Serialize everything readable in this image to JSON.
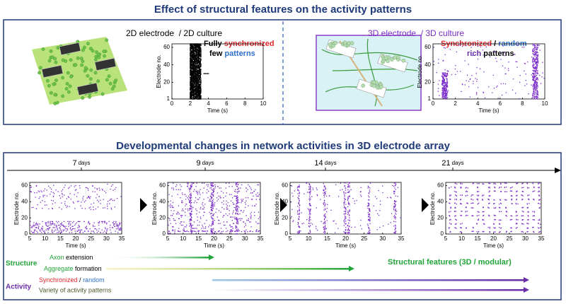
{
  "top": {
    "title": "Effect of structural features on the activity patterns",
    "panels": [
      {
        "heading": "2D electrode  / 2D culture",
        "caption": [
          [
            "Fully ",
            "synchronized"
          ],
          [
            "few ",
            "patterns"
          ]
        ],
        "plot": {
          "xlabel": "Time (s)",
          "ylabel": "Electrode no.",
          "xlim": [
            0,
            10
          ],
          "ylim": [
            1,
            64
          ],
          "xticks": [
            0,
            2,
            4,
            6,
            8,
            10
          ],
          "yticks": [
            1,
            20,
            40,
            60
          ]
        }
      },
      {
        "heading": "3D electrode  / 3D culture",
        "caption": [
          [
            "Synchronized",
            " / ",
            "random"
          ],
          [
            "rich ",
            "patterns"
          ]
        ],
        "plot": {
          "xlabel": "Time (s)",
          "ylabel": "Electrode no.",
          "xlim": [
            0,
            10
          ],
          "ylim": [
            1,
            64
          ],
          "xticks": [
            0,
            2,
            4,
            6,
            8,
            10
          ],
          "yticks": [
            1,
            20,
            40,
            60
          ]
        }
      }
    ]
  },
  "bottom": {
    "title": "Developmental changes in network activities in 3D electrode array",
    "stages": [
      {
        "day": "7",
        "unit": "days",
        "plot": {
          "xlabel": "Time (s)",
          "ylabel": "Electrode no.",
          "xlim": [
            5,
            35
          ],
          "ylim": [
            0,
            64
          ],
          "xticks": [
            5,
            10,
            15,
            20,
            25,
            30,
            35
          ],
          "yticks": [
            0,
            20,
            40,
            60
          ]
        }
      },
      {
        "day": "9",
        "unit": "days",
        "plot": {
          "xlabel": "Time (s)",
          "ylabel": "Electrode no.",
          "xlim": [
            5,
            35
          ],
          "ylim": [
            0,
            64
          ],
          "xticks": [
            5,
            10,
            15,
            20,
            25,
            30,
            35
          ],
          "yticks": [
            0,
            20,
            40,
            60
          ]
        }
      },
      {
        "day": "14",
        "unit": "days",
        "plot": {
          "xlabel": "Time (s)",
          "ylabel": "Electrode no.",
          "xlim": [
            5,
            35
          ],
          "ylim": [
            0,
            64
          ],
          "xticks": [
            5,
            10,
            15,
            20,
            25,
            30,
            35
          ],
          "yticks": [
            0,
            20,
            40,
            60
          ]
        }
      },
      {
        "day": "21",
        "unit": "days",
        "plot": {
          "xlabel": "Time (s)",
          "ylabel": "Electrode no.",
          "xlim": [
            5,
            35
          ],
          "ylim": [
            0,
            64
          ],
          "xticks": [
            5,
            10,
            15,
            20,
            25,
            30,
            35
          ],
          "yticks": [
            0,
            20,
            40,
            60
          ]
        }
      }
    ],
    "legend": {
      "structure": "Structure",
      "axon": [
        "Axon",
        " extension"
      ],
      "aggregate": [
        "Aggregate",
        " formation"
      ],
      "features": "Structural features (3D / modular)",
      "activity": "Activity",
      "sync": [
        "Synchronized",
        " / ",
        "random"
      ],
      "variety": "Variety of activity patterns"
    }
  }
}
